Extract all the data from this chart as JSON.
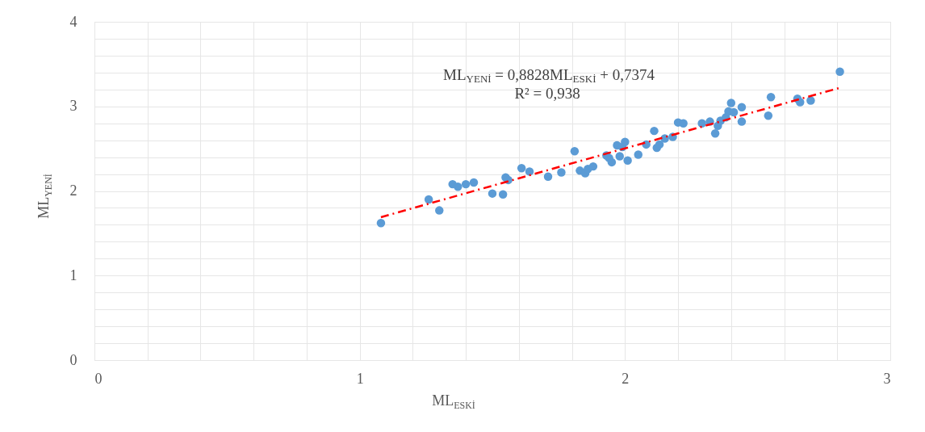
{
  "chart_data": {
    "type": "scatter",
    "xlabel": "ML$_{ESKİ}$",
    "ylabel": "ML$_{YENİ}$",
    "annotations": [
      "ML$_{YENİ}$ = 0,8828ML$_{ESKİ}$ + 0,7374",
      "R² = 0,938"
    ],
    "xlim": [
      0,
      3
    ],
    "ylim": [
      0,
      4
    ],
    "xticks": [
      0,
      {
        "value": 0.2,
        "label": null
      },
      {
        "value": 0.4,
        "label": null
      },
      {
        "value": 0.6,
        "label": null
      },
      {
        "value": 0.8,
        "label": null
      },
      1,
      {
        "value": 1.2,
        "label": null
      },
      {
        "value": 1.4,
        "label": null
      },
      {
        "value": 1.6,
        "label": null
      },
      {
        "value": 1.8,
        "label": null
      },
      2,
      {
        "value": 2.2,
        "label": null
      },
      {
        "value": 2.4,
        "label": null
      },
      {
        "value": 2.6,
        "label": null
      },
      {
        "value": 2.8,
        "label": null
      },
      3
    ],
    "yticks": [
      0,
      {
        "value": 0.2,
        "label": null
      },
      {
        "value": 0.4,
        "label": null
      },
      {
        "value": 0.6,
        "label": null
      },
      {
        "value": 0.8,
        "label": null
      },
      1,
      {
        "value": 1.2,
        "label": null
      },
      {
        "value": 1.4,
        "label": null
      },
      {
        "value": 1.6,
        "label": null
      },
      {
        "value": 1.8,
        "label": null
      },
      2,
      {
        "value": 2.2,
        "label": null
      },
      {
        "value": 2.4,
        "label": null
      },
      {
        "value": 2.6,
        "label": null
      },
      {
        "value": 2.8,
        "label": null
      },
      3,
      {
        "value": 3.2,
        "label": null
      },
      {
        "value": 3.4,
        "label": null
      },
      {
        "value": 3.6,
        "label": null
      },
      {
        "value": 3.8,
        "label": null
      },
      4
    ],
    "grid": true,
    "series": [
      {
        "marker": "circle",
        "color": "#5b9bd5",
        "x": [
          1.08,
          1.26,
          1.3,
          1.35,
          1.37,
          1.4,
          1.43,
          1.5,
          1.54,
          1.55,
          1.56,
          1.61,
          1.64,
          1.71,
          1.76,
          1.81,
          1.83,
          1.85,
          1.86,
          1.88,
          1.93,
          1.94,
          1.95,
          1.97,
          1.98,
          1.99,
          2.0,
          2.01,
          2.05,
          2.08,
          2.11,
          2.12,
          2.13,
          2.15,
          2.18,
          2.2,
          2.22,
          2.29,
          2.32,
          2.34,
          2.35,
          2.36,
          2.38,
          2.39,
          2.4,
          2.41,
          2.44,
          2.44,
          2.54,
          2.55,
          2.65,
          2.66,
          2.7,
          2.81
        ],
        "values": [
          1.62,
          1.9,
          1.77,
          2.08,
          2.05,
          2.08,
          2.1,
          1.97,
          1.96,
          2.16,
          2.13,
          2.27,
          2.23,
          2.17,
          2.22,
          2.47,
          2.24,
          2.21,
          2.26,
          2.29,
          2.42,
          2.39,
          2.34,
          2.54,
          2.41,
          2.52,
          2.58,
          2.36,
          2.43,
          2.55,
          2.71,
          2.51,
          2.55,
          2.62,
          2.64,
          2.81,
          2.8,
          2.8,
          2.82,
          2.68,
          2.77,
          2.83,
          2.87,
          2.94,
          3.04,
          2.93,
          2.82,
          2.99,
          2.89,
          3.11,
          3.09,
          3.05,
          3.07,
          3.41
        ]
      },
      {
        "type": "line",
        "marker": "none",
        "line_style": "dashed",
        "color": "#ff0000",
        "x": [
          1.08,
          2.81
        ],
        "values": [
          1.69,
          3.22
        ]
      }
    ]
  }
}
